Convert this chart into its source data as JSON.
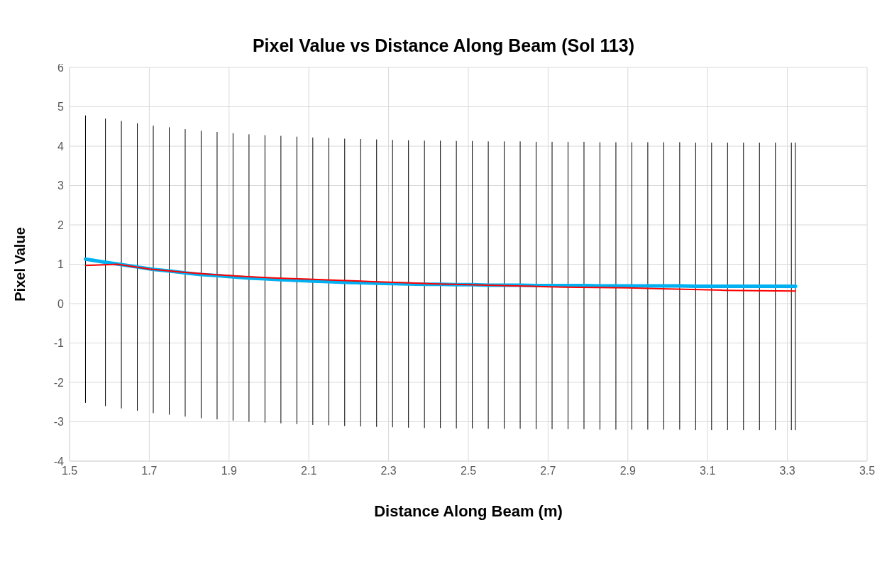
{
  "chart_data": {
    "type": "line",
    "title": "Pixel Value vs Distance Along Beam (Sol 113)",
    "xlabel": "Distance Along Beam (m)",
    "ylabel": "Pixel Value",
    "xlim": [
      1.5,
      3.5
    ],
    "xticks": [
      1.5,
      1.7,
      1.9,
      2.1,
      2.3,
      2.5,
      2.7,
      2.9,
      3.1,
      3.3,
      3.5
    ],
    "ylim": [
      -4,
      6
    ],
    "yticks": [
      -4,
      -3,
      -2,
      -1,
      0,
      1,
      2,
      3,
      4,
      5,
      6
    ],
    "grid": true,
    "marker": "none",
    "line_style": "solid",
    "series": [
      {
        "color": "#00b0f0",
        "x": [
          1.54,
          1.59,
          1.63,
          1.67,
          1.71,
          1.75,
          1.79,
          1.83,
          1.87,
          1.91,
          1.95,
          1.99,
          2.03,
          2.07,
          2.11,
          2.15,
          2.19,
          2.23,
          2.27,
          2.31,
          2.35,
          2.39,
          2.43,
          2.47,
          2.51,
          2.55,
          2.59,
          2.63,
          2.67,
          2.71,
          2.75,
          2.79,
          2.83,
          2.87,
          2.91,
          2.95,
          2.99,
          3.03,
          3.07,
          3.11,
          3.15,
          3.19,
          3.23,
          3.27,
          3.31,
          3.32
        ],
        "values": [
          1.13,
          1.05,
          0.99,
          0.93,
          0.87,
          0.83,
          0.78,
          0.74,
          0.71,
          0.68,
          0.65,
          0.63,
          0.61,
          0.59,
          0.57,
          0.56,
          0.54,
          0.53,
          0.52,
          0.51,
          0.5,
          0.49,
          0.49,
          0.48,
          0.48,
          0.47,
          0.47,
          0.47,
          0.46,
          0.46,
          0.46,
          0.46,
          0.45,
          0.45,
          0.45,
          0.45,
          0.45,
          0.45,
          0.44,
          0.44,
          0.44,
          0.44,
          0.44,
          0.44,
          0.44,
          0.44
        ],
        "errors": [
          3.65,
          3.65,
          3.65,
          3.65,
          3.65,
          3.65,
          3.65,
          3.65,
          3.65,
          3.65,
          3.65,
          3.65,
          3.65,
          3.65,
          3.65,
          3.65,
          3.65,
          3.65,
          3.65,
          3.65,
          3.65,
          3.65,
          3.65,
          3.65,
          3.65,
          3.65,
          3.65,
          3.65,
          3.65,
          3.65,
          3.65,
          3.65,
          3.65,
          3.65,
          3.65,
          3.65,
          3.65,
          3.65,
          3.65,
          3.65,
          3.65,
          3.65,
          3.65,
          3.65,
          3.65,
          3.65
        ]
      },
      {
        "color": "#ff0000",
        "x": [
          1.54,
          1.62,
          1.7,
          1.78,
          1.86,
          1.94,
          2.02,
          2.1,
          2.18,
          2.26,
          2.34,
          2.42,
          2.5,
          2.58,
          2.66,
          2.74,
          2.82,
          2.9,
          2.98,
          3.06,
          3.14,
          3.22,
          3.32
        ],
        "values": [
          0.97,
          1.0,
          0.88,
          0.8,
          0.74,
          0.69,
          0.65,
          0.62,
          0.59,
          0.56,
          0.53,
          0.5,
          0.48,
          0.46,
          0.44,
          0.42,
          0.41,
          0.4,
          0.38,
          0.36,
          0.34,
          0.33,
          0.32
        ]
      }
    ]
  }
}
